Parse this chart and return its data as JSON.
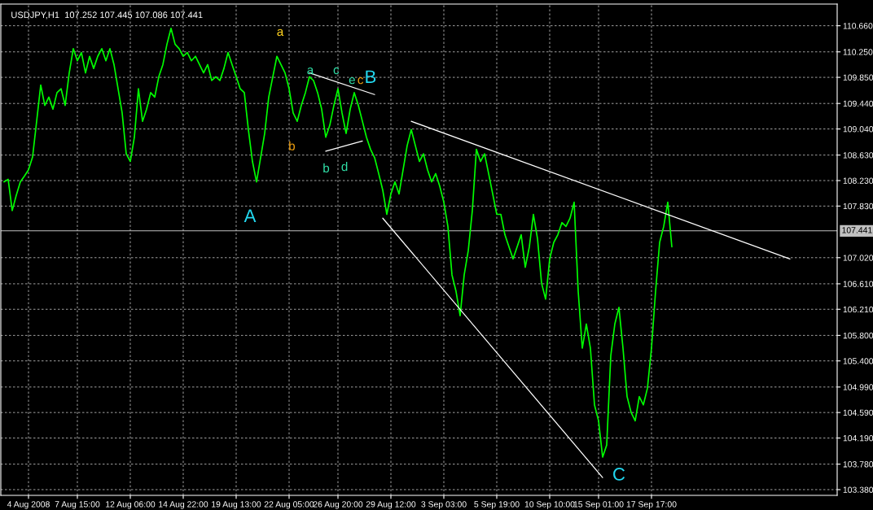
{
  "chart_data": {
    "type": "line",
    "title": "USDJPY,H1  107.252 107.445 107.086 107.441",
    "categories": [
      null,
      null,
      null,
      null,
      null,
      null,
      "4 Aug 2008",
      null,
      null,
      null,
      null,
      null,
      null,
      null,
      null,
      null,
      null,
      null,
      "7 Aug 15:00",
      null,
      null,
      null,
      null,
      null,
      null,
      null,
      null,
      null,
      null,
      null,
      null,
      "12 Aug 06:00",
      null,
      null,
      null,
      null,
      null,
      null,
      null,
      null,
      null,
      null,
      null,
      null,
      "14 Aug 22:00",
      null,
      null,
      null,
      null,
      null,
      null,
      null,
      null,
      null,
      null,
      null,
      null,
      "19 Aug 13:00",
      null,
      null,
      null,
      null,
      null,
      null,
      null,
      null,
      null,
      null,
      null,
      null,
      "22 Aug 05:00",
      null,
      null,
      null,
      null,
      null,
      null,
      null,
      null,
      null,
      null,
      null,
      "26 Aug 20:00",
      null,
      null,
      null,
      null,
      null,
      null,
      null,
      null,
      null,
      null,
      null,
      null,
      "29 Aug 12:00",
      null,
      null,
      null,
      null,
      null,
      null,
      null,
      null,
      null,
      null,
      null,
      null,
      "3 Sep 03:00",
      null,
      null,
      null,
      null,
      null,
      null,
      null,
      null,
      null,
      null,
      null,
      null,
      "5 Sep 19:00",
      null,
      null,
      null,
      null,
      null,
      null,
      null,
      null,
      null,
      null,
      null,
      null,
      "10 Sep 10:00",
      null,
      null,
      null,
      null,
      null,
      null,
      null,
      null,
      null,
      null,
      null,
      "15 Sep 01:00",
      null,
      null,
      null,
      null,
      null,
      null,
      null,
      null,
      null,
      null,
      null,
      null,
      "17 Sep 17:00",
      null,
      null,
      null,
      null,
      null,
      null,
      null,
      null,
      null,
      null,
      null,
      null,
      null,
      null,
      null,
      null,
      null,
      null,
      null,
      null,
      null,
      null,
      null,
      null,
      null,
      null,
      null,
      null,
      null,
      null,
      null,
      null,
      null,
      null,
      null,
      null,
      null,
      null,
      null,
      null,
      null,
      null,
      null,
      null,
      null
    ],
    "ylim": [
      103.29,
      111.0
    ],
    "yticks": [
      {
        "value": 110.66,
        "label": "110.660"
      },
      {
        "value": 110.25,
        "label": "110.250"
      },
      {
        "value": 109.85,
        "label": "109.850"
      },
      {
        "value": 109.44,
        "label": "109.440"
      },
      {
        "value": 109.04,
        "label": "109.040"
      },
      {
        "value": 108.63,
        "label": "108.630"
      },
      {
        "value": 108.23,
        "label": "108.230"
      },
      {
        "value": 107.83,
        "label": "107.830"
      },
      {
        "value": 107.02,
        "label": "107.020"
      },
      {
        "value": 106.61,
        "label": "106.610"
      },
      {
        "value": 106.21,
        "label": "106.210"
      },
      {
        "value": 105.8,
        "label": "105.800"
      },
      {
        "value": 105.4,
        "label": "105.400"
      },
      {
        "value": 104.99,
        "label": "104.990"
      },
      {
        "value": 104.59,
        "label": "104.590"
      },
      {
        "value": 104.19,
        "label": "104.190"
      },
      {
        "value": 103.78,
        "label": "103.780"
      },
      {
        "value": 103.38,
        "label": "103.380"
      }
    ],
    "grid": true,
    "ref_lines": [
      {
        "axis": "y",
        "value": 107.441,
        "label": "107.441",
        "color": "#c0c0c0"
      }
    ],
    "series": [
      {
        "color": "#00ff00",
        "values": [
          108.21,
          108.25,
          107.76,
          108.0,
          108.21,
          108.3,
          108.4,
          108.6,
          109.16,
          109.73,
          109.41,
          109.54,
          109.35,
          109.61,
          109.67,
          109.41,
          109.92,
          110.3,
          110.11,
          110.24,
          109.92,
          110.18,
          109.99,
          110.18,
          110.3,
          110.11,
          110.3,
          110.05,
          109.67,
          109.29,
          108.65,
          108.53,
          108.91,
          109.67,
          109.16,
          109.35,
          109.61,
          109.54,
          109.86,
          110.05,
          110.37,
          110.62,
          110.37,
          110.3,
          110.18,
          110.24,
          110.11,
          110.18,
          110.05,
          109.92,
          110.05,
          109.8,
          109.86,
          109.8,
          109.99,
          110.24,
          110.05,
          109.86,
          109.67,
          109.61,
          109.03,
          108.53,
          108.21,
          108.59,
          108.97,
          109.54,
          109.86,
          110.18,
          110.05,
          109.92,
          109.67,
          109.29,
          109.16,
          109.41,
          109.61,
          109.86,
          109.8,
          109.61,
          109.35,
          108.91,
          109.1,
          109.41,
          109.67,
          109.29,
          108.97,
          109.35,
          109.61,
          109.41,
          109.16,
          108.91,
          108.72,
          108.59,
          108.34,
          108.08,
          107.7,
          108.02,
          108.21,
          108.02,
          108.4,
          108.78,
          109.03,
          108.78,
          108.53,
          108.65,
          108.4,
          108.21,
          108.34,
          108.14,
          107.89,
          107.51,
          106.75,
          106.49,
          106.11,
          106.75,
          107.13,
          107.76,
          108.72,
          108.53,
          108.65,
          108.34,
          108.02,
          107.7,
          107.7,
          107.38,
          107.19,
          107.0,
          107.19,
          107.38,
          106.87,
          107.19,
          107.7,
          107.32,
          106.62,
          106.37,
          107.0,
          107.26,
          107.38,
          107.57,
          107.51,
          107.64,
          107.89,
          106.49,
          105.6,
          105.98,
          105.6,
          104.71,
          104.46,
          103.89,
          104.08,
          105.48,
          105.98,
          106.24,
          105.6,
          104.84,
          104.59,
          104.46,
          104.84,
          104.71,
          104.97,
          105.6,
          106.49,
          107.26,
          107.51,
          107.89,
          107.19,
          null,
          null,
          null,
          null,
          null,
          null,
          null,
          null,
          null,
          null,
          null,
          null,
          null,
          null,
          null,
          null,
          null,
          null,
          null,
          null,
          null,
          null,
          null,
          null,
          null,
          null,
          null,
          null,
          null,
          null,
          null,
          null,
          null,
          null,
          null,
          null,
          null,
          null,
          null,
          null
        ]
      },
      {
        "color": "#ffffff",
        "values": [
          null,
          null,
          null,
          null,
          null,
          null,
          null,
          null,
          null,
          null,
          null,
          null,
          null,
          null,
          null,
          null,
          null,
          null,
          null,
          null,
          null,
          null,
          null,
          null,
          null,
          null,
          null,
          null,
          null,
          null,
          null,
          null,
          null,
          null,
          null,
          null,
          null,
          null,
          null,
          null,
          null,
          null,
          null,
          null,
          null,
          null,
          null,
          null,
          null,
          null,
          null,
          null,
          null,
          null,
          null,
          null,
          null,
          null,
          null,
          null,
          null,
          null,
          null,
          null,
          null,
          null,
          null,
          null,
          null,
          null,
          null,
          null,
          null,
          null,
          null,
          null,
          null,
          null,
          null,
          null,
          null,
          null,
          null,
          null,
          null,
          null,
          null,
          null,
          null,
          null,
          null,
          null,
          null,
          107.64,
          null,
          null,
          null,
          null,
          null,
          null,
          null,
          null,
          null,
          null,
          null,
          null,
          null,
          null,
          null,
          null,
          null,
          null,
          null,
          null,
          null,
          null,
          null,
          null,
          null,
          null,
          null,
          null,
          null,
          null,
          null,
          null,
          null,
          null,
          null,
          null,
          null,
          null,
          null,
          null,
          null,
          null,
          null,
          null,
          null,
          null,
          null,
          null,
          null,
          null,
          null,
          null,
          null,
          103.57,
          null,
          null,
          null,
          null,
          null,
          null,
          null,
          null,
          null,
          null,
          null,
          null,
          null,
          null,
          null,
          null,
          null,
          null,
          null,
          null,
          null,
          null,
          null,
          null,
          null,
          null,
          null,
          null,
          null,
          null,
          null,
          null,
          null,
          null,
          null,
          null,
          null,
          null,
          null,
          null,
          null,
          null,
          null,
          null,
          null,
          null,
          null,
          null,
          null,
          null,
          null,
          null,
          null,
          null,
          null,
          null,
          null
        ]
      },
      {
        "color": "#ffffff",
        "values": [
          null,
          null,
          null,
          null,
          null,
          null,
          null,
          null,
          null,
          null,
          null,
          null,
          null,
          null,
          null,
          null,
          null,
          null,
          null,
          null,
          null,
          null,
          null,
          null,
          null,
          null,
          null,
          null,
          null,
          null,
          null,
          null,
          null,
          null,
          null,
          null,
          null,
          null,
          null,
          null,
          null,
          null,
          null,
          null,
          null,
          null,
          null,
          null,
          null,
          null,
          null,
          null,
          null,
          null,
          null,
          null,
          null,
          null,
          null,
          null,
          null,
          null,
          null,
          null,
          null,
          null,
          null,
          null,
          null,
          null,
          null,
          null,
          null,
          null,
          null,
          null,
          null,
          null,
          null,
          null,
          null,
          null,
          null,
          null,
          null,
          null,
          null,
          null,
          null,
          null,
          null,
          null,
          null,
          null,
          null,
          null,
          null,
          null,
          null,
          null,
          109.16,
          null,
          null,
          null,
          null,
          null,
          null,
          null,
          null,
          null,
          null,
          null,
          null,
          null,
          null,
          null,
          null,
          null,
          null,
          null,
          null,
          null,
          null,
          null,
          null,
          null,
          null,
          null,
          null,
          null,
          null,
          null,
          null,
          null,
          null,
          null,
          null,
          null,
          null,
          null,
          null,
          null,
          null,
          null,
          null,
          null,
          null,
          null,
          null,
          null,
          null,
          null,
          null,
          null,
          null,
          null,
          null,
          null,
          null,
          null,
          null,
          null,
          null,
          null,
          null,
          null,
          null,
          null,
          null,
          null,
          null,
          null,
          null,
          null,
          null,
          null,
          null,
          null,
          null,
          null,
          null,
          null,
          null,
          null,
          null,
          null,
          null,
          null,
          null,
          null,
          null,
          null,
          null,
          107.0,
          null,
          null,
          null,
          null,
          null,
          null,
          null,
          null,
          null,
          null,
          null
        ]
      },
      {
        "color": "#ffffff",
        "values": [
          null,
          null,
          null,
          null,
          null,
          null,
          null,
          null,
          null,
          null,
          null,
          null,
          null,
          null,
          null,
          null,
          null,
          null,
          null,
          null,
          null,
          null,
          null,
          null,
          null,
          null,
          null,
          null,
          null,
          null,
          null,
          null,
          null,
          null,
          null,
          null,
          null,
          null,
          null,
          null,
          null,
          null,
          null,
          null,
          null,
          null,
          null,
          null,
          null,
          null,
          null,
          null,
          null,
          null,
          null,
          null,
          null,
          null,
          null,
          null,
          null,
          null,
          null,
          null,
          null,
          null,
          null,
          null,
          null,
          null,
          null,
          null,
          null,
          null,
          null,
          109.92,
          null,
          null,
          null,
          null,
          null,
          null,
          null,
          null,
          null,
          null,
          null,
          null,
          null,
          null,
          null,
          109.58,
          null,
          null,
          null,
          null,
          null,
          null,
          null,
          null,
          null,
          null,
          null,
          null,
          null,
          null,
          null,
          null,
          null,
          null,
          null,
          null,
          null,
          null,
          null,
          null,
          null,
          null,
          null,
          null,
          null,
          null,
          null,
          null,
          null,
          null,
          null,
          null,
          null,
          null,
          null,
          null,
          null,
          null,
          null,
          null,
          null,
          null,
          null,
          null,
          null,
          null,
          null,
          null,
          null,
          null,
          null,
          null,
          null,
          null,
          null,
          null,
          null,
          null,
          null,
          null,
          null,
          null,
          null,
          null,
          null,
          null,
          null,
          null,
          null,
          null,
          null,
          null,
          null,
          null,
          null,
          null,
          null,
          null,
          null,
          null,
          null,
          null,
          null,
          null,
          null,
          null,
          null,
          null,
          null,
          null,
          null,
          null,
          null,
          null,
          null,
          null,
          null,
          null,
          null,
          null,
          null,
          null,
          null,
          null,
          null,
          null,
          null,
          null,
          null
        ]
      },
      {
        "color": "#ffffff",
        "values": [
          null,
          null,
          null,
          null,
          null,
          null,
          null,
          null,
          null,
          null,
          null,
          null,
          null,
          null,
          null,
          null,
          null,
          null,
          null,
          null,
          null,
          null,
          null,
          null,
          null,
          null,
          null,
          null,
          null,
          null,
          null,
          null,
          null,
          null,
          null,
          null,
          null,
          null,
          null,
          null,
          null,
          null,
          null,
          null,
          null,
          null,
          null,
          null,
          null,
          null,
          null,
          null,
          null,
          null,
          null,
          null,
          null,
          null,
          null,
          null,
          null,
          null,
          null,
          null,
          null,
          null,
          null,
          null,
          null,
          null,
          null,
          null,
          null,
          null,
          null,
          null,
          null,
          null,
          null,
          108.69,
          null,
          null,
          null,
          null,
          null,
          null,
          null,
          null,
          108.85,
          null,
          null,
          null,
          null,
          null,
          null,
          null,
          null,
          null,
          null,
          null,
          null,
          null,
          null,
          null,
          null,
          null,
          null,
          null,
          null,
          null,
          null,
          null,
          null,
          null,
          null,
          null,
          null,
          null,
          null,
          null,
          null,
          null,
          null,
          null,
          null,
          null,
          null,
          null,
          null,
          null,
          null,
          null,
          null,
          null,
          null,
          null,
          null,
          null,
          null,
          null,
          null,
          null,
          null,
          null,
          null,
          null,
          null,
          null,
          null,
          null,
          null,
          null,
          null,
          null,
          null,
          null,
          null,
          null,
          null,
          null,
          null,
          null,
          null,
          null,
          null,
          null,
          null,
          null,
          null,
          null,
          null,
          null,
          null,
          null,
          null,
          null,
          null,
          null,
          null,
          null,
          null,
          null,
          null,
          null,
          null,
          null,
          null,
          null,
          null,
          null,
          null,
          null,
          null,
          null,
          null,
          null,
          null,
          null,
          null,
          null,
          null,
          null,
          null,
          null,
          null
        ]
      }
    ],
    "annotations": [
      "A",
      "a",
      "b",
      {
        "text": "a",
        "y": 109.95
      },
      "c",
      "e",
      "c",
      "B",
      "b",
      "d",
      "C"
    ]
  }
}
